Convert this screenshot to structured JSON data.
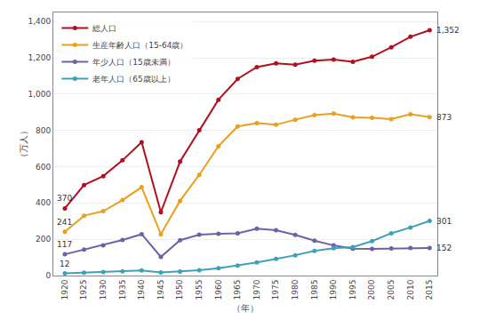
{
  "chart_data": {
    "type": "line",
    "x": [
      1920,
      1925,
      1930,
      1935,
      1940,
      1945,
      1950,
      1955,
      1960,
      1965,
      1970,
      1975,
      1980,
      1985,
      1990,
      1995,
      2000,
      2005,
      2010,
      2015
    ],
    "series": [
      {
        "name": "総人口",
        "color": "#b01020",
        "values": [
          370,
          499,
          548,
          635,
          735,
          349,
          628,
          801,
          969,
          1084,
          1149,
          1169,
          1162,
          1184,
          1190,
          1178,
          1206,
          1258,
          1316,
          1352
        ]
      },
      {
        "name": "生産年齢人口（15-64歳）",
        "color": "#e8a020",
        "values": [
          241,
          330,
          355,
          416,
          487,
          228,
          412,
          555,
          713,
          822,
          840,
          831,
          859,
          884,
          893,
          872,
          869,
          862,
          889,
          873
        ]
      },
      {
        "name": "年少人口（15歳未満）",
        "color": "#7060a8",
        "values": [
          117,
          143,
          167,
          196,
          228,
          103,
          195,
          225,
          230,
          233,
          258,
          250,
          224,
          192,
          166,
          148,
          147,
          149,
          152,
          152
        ]
      },
      {
        "name": "老年人口（65歳以上）",
        "color": "#40a0b8",
        "values": [
          12,
          16,
          20,
          23,
          28,
          17,
          22,
          30,
          40,
          55,
          72,
          92,
          112,
          136,
          151,
          157,
          190,
          233,
          265,
          301
        ]
      }
    ],
    "x_label": "（年）",
    "y_label": "（万人）",
    "xlim": [
      1917,
      2017
    ],
    "xticks": [
      1920,
      1925,
      1930,
      1935,
      1940,
      1945,
      1950,
      1955,
      1960,
      1965,
      1970,
      1975,
      1980,
      1985,
      1990,
      1995,
      2000,
      2005,
      2010,
      2015
    ],
    "ylim": [
      0,
      1450
    ],
    "yticks": [
      0,
      200,
      400,
      600,
      800,
      {
        "value": 1000,
        "label": "1,000"
      },
      {
        "value": 1200,
        "label": "1,200"
      },
      {
        "value": 1400,
        "label": "1,400"
      }
    ],
    "grid": "y",
    "legend": "upper left",
    "marker": "circle",
    "annotations": [
      {
        "text": "370",
        "x": 1920,
        "y": 370
      },
      {
        "text": "241",
        "x": 1920,
        "y": 241
      },
      {
        "text": "117",
        "x": 1920,
        "y": 117
      },
      {
        "text": "12",
        "x": 1920,
        "y": 12
      },
      {
        "text": "1,352",
        "x": 2015,
        "y": 1352
      },
      {
        "text": "873",
        "x": 2015,
        "y": 873
      },
      {
        "text": "301",
        "x": 2015,
        "y": 301
      },
      {
        "text": "152",
        "x": 2015,
        "y": 152
      }
    ]
  }
}
